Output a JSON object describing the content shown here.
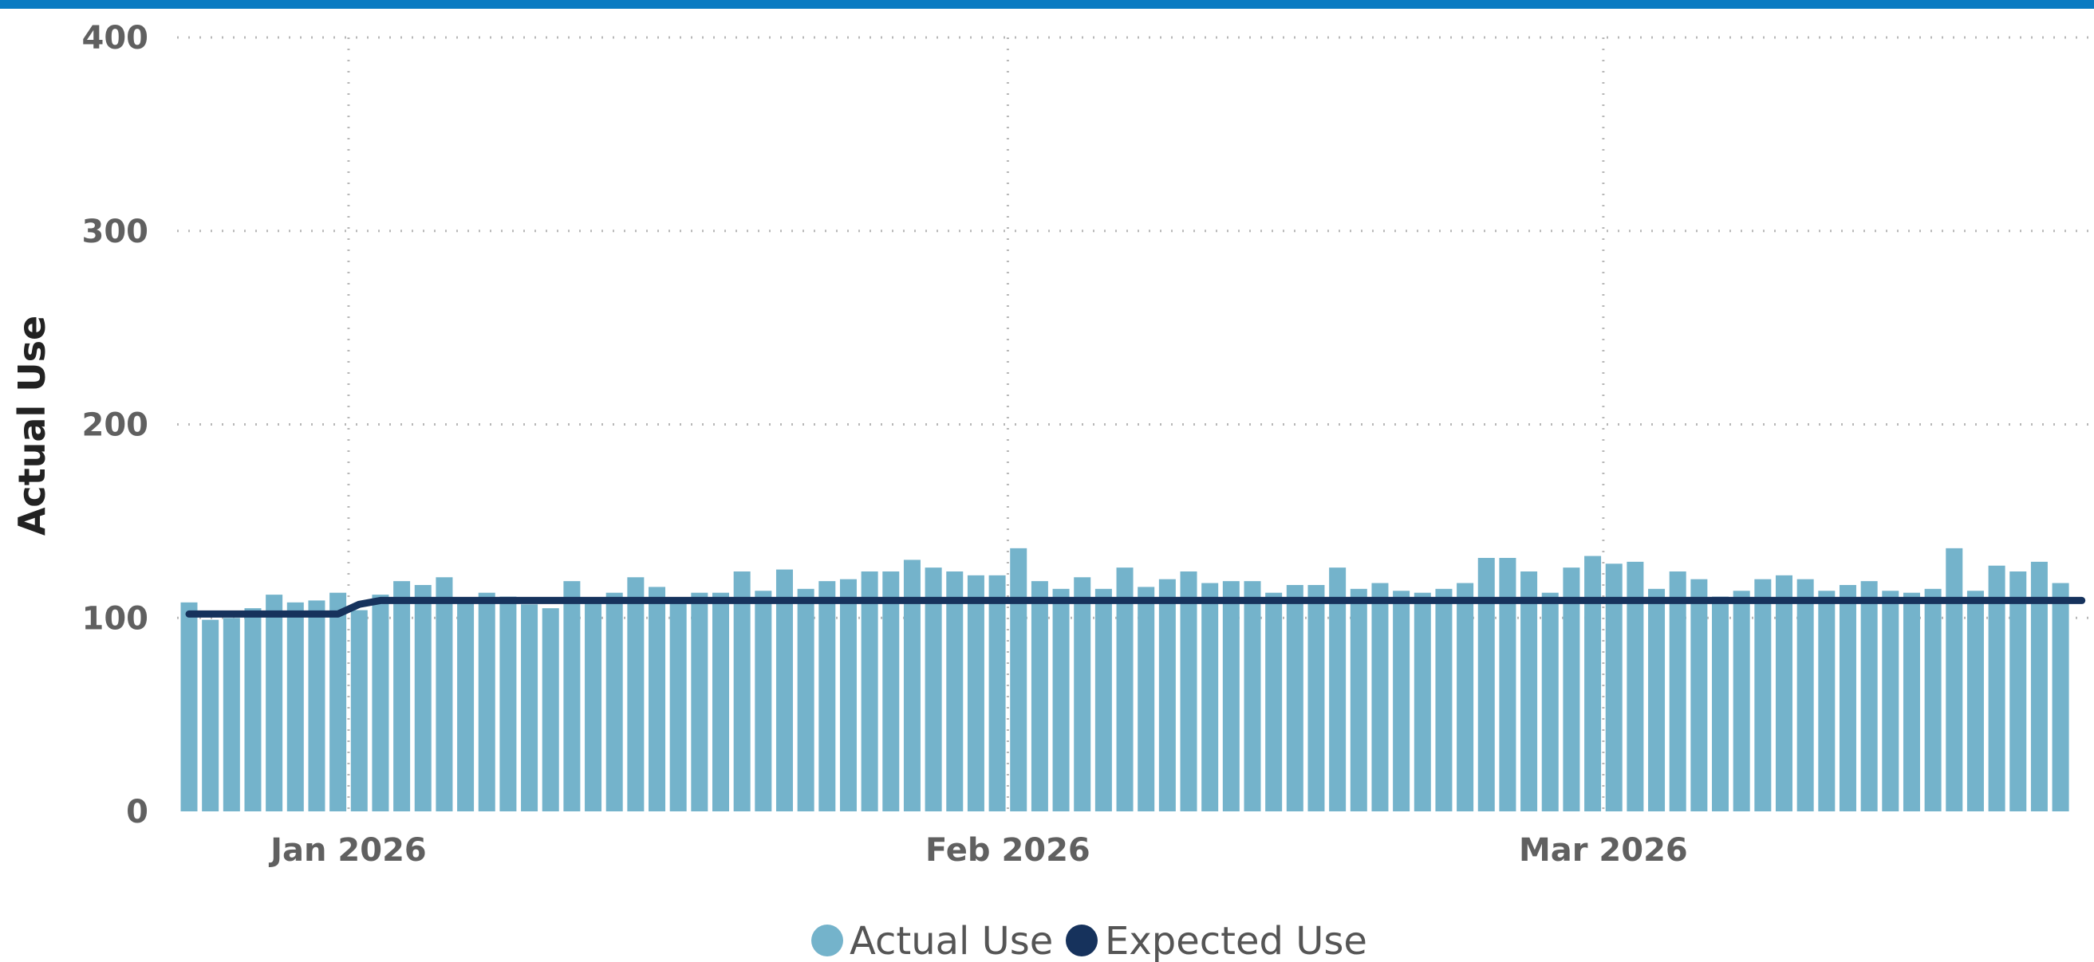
{
  "header": {
    "accent_color": "#0a7bc2"
  },
  "chart_data": {
    "type": "bar",
    "title": "",
    "xlabel": "",
    "ylabel": "Actual Use",
    "ylim": [
      0,
      400
    ],
    "yticks": [
      "0",
      "100",
      "200",
      "300",
      "400"
    ],
    "xtick_labels": [
      "Jan 2026",
      "Feb 2026",
      "Mar 2026"
    ],
    "xtick_dates": [
      "2026-01-01",
      "2026-02-01",
      "2026-03-01"
    ],
    "x_start": "2025-12-24",
    "x_end": "2026-03-30",
    "grid": true,
    "legend_position": "bottom-center",
    "series": [
      {
        "name": "Actual Use",
        "type": "bar",
        "color": "#74b3cb",
        "start_date": "2025-12-24",
        "values": [
          108,
          99,
          100,
          105,
          112,
          108,
          109,
          113,
          104,
          112,
          119,
          117,
          121,
          109,
          113,
          111,
          107,
          105,
          119,
          110,
          113,
          121,
          116,
          110,
          113,
          113,
          124,
          114,
          125,
          115,
          119,
          120,
          124,
          124,
          130,
          126,
          124,
          122,
          122,
          136,
          119,
          115,
          121,
          115,
          126,
          116,
          120,
          124,
          118,
          119,
          119,
          113,
          117,
          117,
          126,
          115,
          118,
          114,
          113,
          115,
          118,
          131,
          131,
          124,
          113,
          126,
          132,
          128,
          129,
          115,
          124,
          120,
          111,
          114,
          120,
          122,
          120,
          114,
          117,
          119,
          114,
          113,
          115,
          136,
          114,
          127,
          124,
          129,
          118
        ]
      },
      {
        "name": "Expected Use",
        "type": "line",
        "color": "#16325c",
        "start_date": "2025-12-24",
        "values": [
          102,
          102,
          102,
          102,
          102,
          102,
          102,
          102,
          107,
          109,
          109,
          109,
          109,
          109,
          109,
          109,
          109,
          109,
          109,
          109,
          109,
          109,
          109,
          109,
          109,
          109,
          109,
          109,
          109,
          109,
          109,
          109,
          109,
          109,
          109,
          109,
          109,
          109,
          109,
          109,
          109,
          109,
          109,
          109,
          109,
          109,
          109,
          109,
          109,
          109,
          109,
          109,
          109,
          109,
          109,
          109,
          109,
          109,
          109,
          109,
          109,
          109,
          109,
          109,
          109,
          109,
          109,
          109,
          109,
          109,
          109,
          109,
          109,
          109,
          109,
          109,
          109,
          109,
          109,
          109,
          109,
          109,
          109,
          109,
          109,
          109,
          109,
          109,
          109,
          109
        ]
      }
    ]
  }
}
